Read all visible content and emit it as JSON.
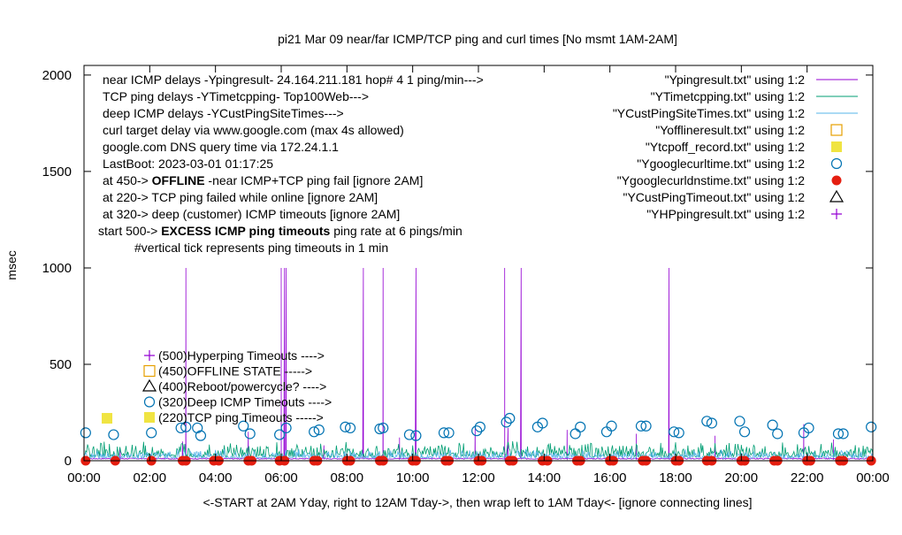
{
  "chart_data": {
    "type": "line",
    "title": "pi21 Mar 09  near/far ICMP/TCP ping and curl times [No msmt 1AM-2AM]",
    "ylabel": "msec",
    "xlabel": "<-START at 2AM Yday, right to 12AM Tday->, then wrap left to 1AM Tday<- [ignore connecting lines]",
    "xlim": [
      0,
      24
    ],
    "ylim": [
      0,
      2050
    ],
    "x_ticks": [
      "00:00",
      "02:00",
      "04:00",
      "06:00",
      "08:00",
      "10:00",
      "12:00",
      "14:00",
      "16:00",
      "18:00",
      "20:00",
      "22:00",
      "00:00"
    ],
    "y_ticks": [
      0,
      500,
      1000,
      1500,
      2000
    ],
    "grid": false,
    "legend_position": "top-right",
    "info_lines": [
      "near ICMP delays -Ypingresult- 24.164.211.181 hop# 4 1 ping/min--->",
      "TCP ping delays -YTimetcpping- Top100Web--->",
      "deep ICMP delays -YCustPingSiteTimes--->",
      "curl target delay via www.google.com (max 4s allowed)",
      "google.com DNS query time via 172.24.1.1",
      "LastBoot: 2023-03-01 01:17:25"
    ],
    "threshold_notes": [
      {
        "pre": "at 450-> ",
        "bold": "OFFLINE",
        "post": " -near ICMP+TCP ping fail [ignore 2AM]"
      },
      {
        "pre": "at 220-> TCP ping failed while online [ignore 2AM]",
        "bold": "",
        "post": ""
      },
      {
        "pre": "at 320-> deep (customer) ICMP timeouts [ignore 2AM]",
        "bold": "",
        "post": ""
      },
      {
        "pre": "start 500-> ",
        "bold": "EXCESS ICMP ping timeouts",
        "post": "  ping rate at 6 pings/min"
      }
    ],
    "tick_note": "#vertical tick represents ping timeouts in 1 min",
    "marker_key": [
      {
        "label": "(500)Hyperping Timeouts ---->",
        "marker": "plus",
        "color": "#9400d3"
      },
      {
        "label": "(450)OFFLINE STATE ----->",
        "marker": "open-square",
        "color": "#e69f00"
      },
      {
        "label": "(400)Reboot/powercycle? ---->",
        "marker": "open-triangle",
        "color": "#000000"
      },
      {
        "label": "(320)Deep ICMP Timeouts ---->",
        "marker": "open-circle",
        "color": "#0072b2"
      },
      {
        "label": "(220)TCP ping Timeouts ----->",
        "marker": "filled-square",
        "color": "#f0e442"
      }
    ],
    "tcp_timeout_marker": {
      "x": 0.7,
      "y": 220
    },
    "series": [
      {
        "name": "\"Ypingresult.txt\" using 1:2",
        "style": "line",
        "color": "#9400d3",
        "baseline": 8,
        "spikes": [
          [
            3.1,
            1000
          ],
          [
            6.0,
            1000
          ],
          [
            6.1,
            1000
          ],
          [
            6.15,
            1000
          ],
          [
            8.5,
            1000
          ],
          [
            9.1,
            1000
          ],
          [
            10.1,
            1000
          ],
          [
            12.8,
            1000
          ],
          [
            13.3,
            1000
          ],
          [
            17.8,
            1000
          ],
          [
            1.1,
            60
          ],
          [
            3.0,
            100
          ],
          [
            5.0,
            150
          ],
          [
            7.3,
            80
          ],
          [
            9.6,
            120
          ],
          [
            11.9,
            180
          ],
          [
            12.9,
            170
          ],
          [
            14.7,
            160
          ],
          [
            16.8,
            140
          ],
          [
            19.2,
            130
          ],
          [
            21.9,
            190
          ],
          [
            22.8,
            110
          ]
        ]
      },
      {
        "name": "\"YTimetcpping.txt\" using 1:2",
        "style": "line",
        "color": "#009e73",
        "baseline": 18,
        "noise": 45
      },
      {
        "name": "\"YCustPingSiteTimes.txt\" using 1:2",
        "style": "line",
        "color": "#56b4e9",
        "baseline": 12,
        "noise": 25
      },
      {
        "name": "\"Yofflineresult.txt\" using 1:2",
        "style": "points",
        "marker": "open-square",
        "color": "#e69f00",
        "points": []
      },
      {
        "name": "\"Ytcpoff_record.txt\" using 1:2",
        "style": "points",
        "marker": "filled-square",
        "color": "#f0e442",
        "points": []
      },
      {
        "name": "\"Ygooglecurltime.txt\" using 1:2",
        "style": "points",
        "marker": "open-circle",
        "color": "#0072b2",
        "points": [
          [
            0.05,
            145
          ],
          [
            0.9,
            135
          ],
          [
            2.05,
            145
          ],
          [
            2.95,
            170
          ],
          [
            3.1,
            175
          ],
          [
            3.45,
            170
          ],
          [
            3.55,
            130
          ],
          [
            4.85,
            180
          ],
          [
            5.05,
            140
          ],
          [
            5.95,
            135
          ],
          [
            6.15,
            170
          ],
          [
            7.0,
            150
          ],
          [
            7.15,
            160
          ],
          [
            7.95,
            175
          ],
          [
            8.1,
            170
          ],
          [
            9.0,
            165
          ],
          [
            9.1,
            170
          ],
          [
            9.9,
            135
          ],
          [
            10.1,
            130
          ],
          [
            10.95,
            145
          ],
          [
            11.1,
            145
          ],
          [
            11.95,
            155
          ],
          [
            12.05,
            175
          ],
          [
            12.85,
            200
          ],
          [
            12.95,
            220
          ],
          [
            13.8,
            175
          ],
          [
            13.95,
            195
          ],
          [
            14.95,
            140
          ],
          [
            15.1,
            175
          ],
          [
            15.9,
            150
          ],
          [
            16.05,
            180
          ],
          [
            16.95,
            180
          ],
          [
            17.1,
            180
          ],
          [
            17.95,
            150
          ],
          [
            18.1,
            145
          ],
          [
            18.95,
            205
          ],
          [
            19.1,
            195
          ],
          [
            19.95,
            205
          ],
          [
            20.1,
            150
          ],
          [
            20.95,
            185
          ],
          [
            21.1,
            140
          ],
          [
            21.9,
            145
          ],
          [
            22.05,
            170
          ],
          [
            22.95,
            140
          ],
          [
            23.1,
            140
          ],
          [
            23.95,
            175
          ]
        ]
      },
      {
        "name": "\"Ygooglecurldnstime.txt\" using 1:2",
        "style": "points",
        "marker": "filled-circle",
        "color": "#e51e10",
        "points": [
          [
            0.05,
            0
          ],
          [
            0.95,
            0
          ],
          [
            2.05,
            0
          ],
          [
            3.0,
            0
          ],
          [
            3.1,
            0
          ],
          [
            3.95,
            0
          ],
          [
            4.1,
            0
          ],
          [
            5.0,
            0
          ],
          [
            5.1,
            0
          ],
          [
            5.95,
            0
          ],
          [
            6.1,
            0
          ],
          [
            7.0,
            0
          ],
          [
            7.1,
            0
          ],
          [
            8.0,
            0
          ],
          [
            8.1,
            0
          ],
          [
            9.0,
            0
          ],
          [
            9.1,
            0
          ],
          [
            10.0,
            0
          ],
          [
            10.1,
            0
          ],
          [
            11.0,
            0
          ],
          [
            11.1,
            0
          ],
          [
            12.0,
            0
          ],
          [
            12.1,
            0
          ],
          [
            12.95,
            0
          ],
          [
            13.05,
            0
          ],
          [
            13.95,
            0
          ],
          [
            14.1,
            0
          ],
          [
            15.0,
            0
          ],
          [
            15.1,
            0
          ],
          [
            16.0,
            0
          ],
          [
            16.1,
            0
          ],
          [
            17.0,
            0
          ],
          [
            17.1,
            0
          ],
          [
            18.0,
            0
          ],
          [
            18.1,
            0
          ],
          [
            18.95,
            0
          ],
          [
            19.1,
            0
          ],
          [
            20.0,
            0
          ],
          [
            20.1,
            0
          ],
          [
            21.0,
            0
          ],
          [
            21.1,
            0
          ],
          [
            22.0,
            0
          ],
          [
            22.1,
            0
          ],
          [
            23.0,
            0
          ],
          [
            23.1,
            0
          ],
          [
            23.95,
            0
          ]
        ]
      },
      {
        "name": "\"YCustPingTimeout.txt\" using 1:2",
        "style": "points",
        "marker": "open-triangle",
        "color": "#000000",
        "points": []
      },
      {
        "name": "\"YHPpingresult.txt\" using 1:2",
        "style": "points",
        "marker": "plus",
        "color": "#9400d3",
        "points": []
      }
    ]
  }
}
